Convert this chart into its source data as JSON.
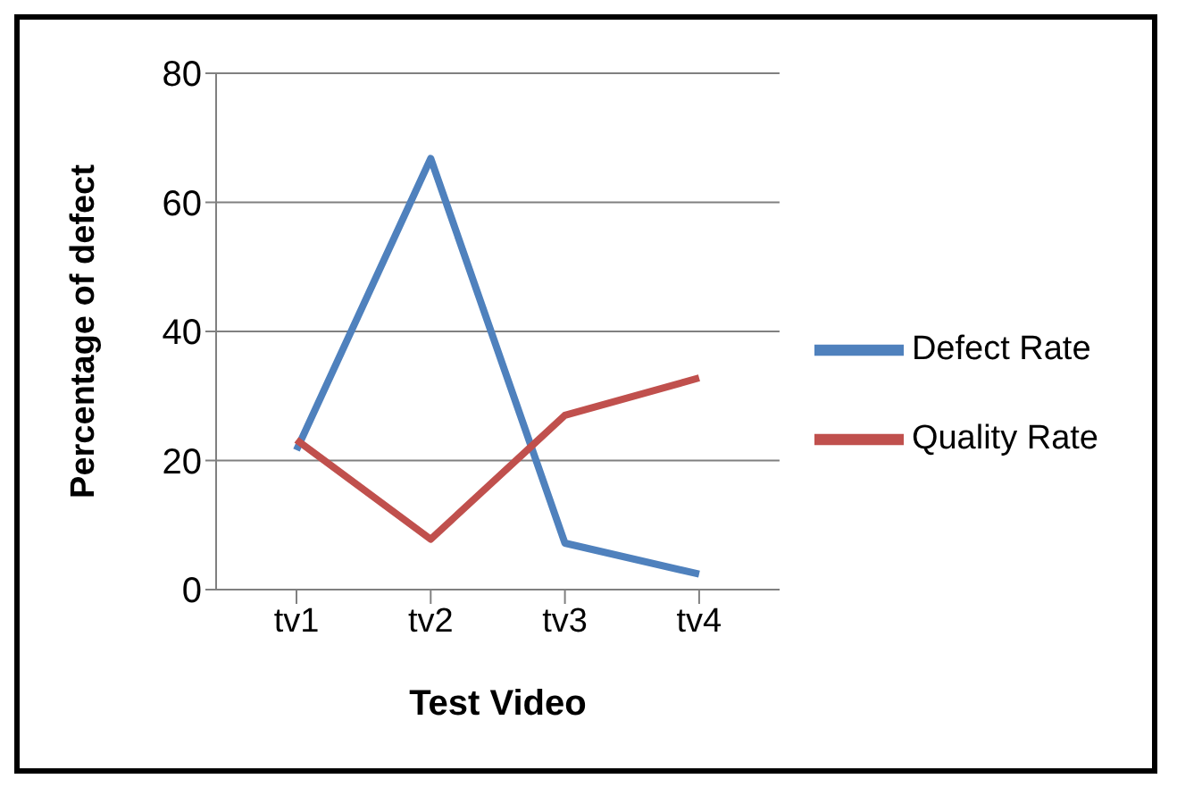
{
  "chart_data": {
    "type": "line",
    "xlabel": "Test Video",
    "ylabel": "Percentage of defect",
    "categories": [
      "tv1",
      "tv2",
      "tv3",
      "tv4"
    ],
    "series": [
      {
        "name": "Defect Rate",
        "color": "#4f81bd",
        "values": [
          21.6,
          66.8,
          7.2,
          2.4
        ]
      },
      {
        "name": "Quality Rate",
        "color": "#c0504d",
        "values": [
          23.2,
          7.8,
          27,
          32.8
        ]
      }
    ],
    "ylim": [
      0,
      80
    ],
    "yticks": [
      0,
      20,
      40,
      60,
      80
    ],
    "grid": "y",
    "legend": "right",
    "marker": "none",
    "line_style": "solid"
  }
}
